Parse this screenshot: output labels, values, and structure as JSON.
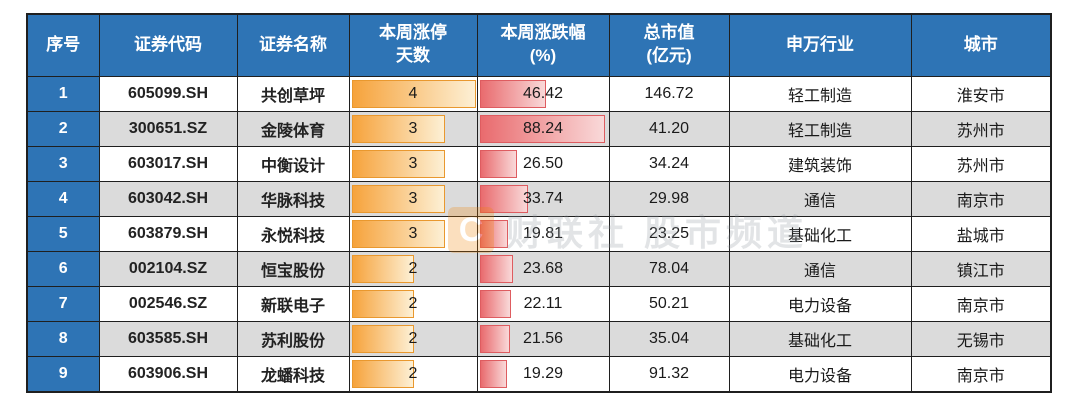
{
  "colors": {
    "header_bg": "#2E74B5",
    "header_text": "#FFFFFF",
    "row_bg": "#FFFFFF",
    "row_alt_bg": "#DBDBDB",
    "grid_border": "#1F1F1F",
    "body_text": "#1A1A1A",
    "days_bar_start": "#F6A33C",
    "days_bar_end": "#FDF0D5",
    "days_bar_border": "#E9982E",
    "change_bar_start": "#E96B6E",
    "change_bar_end": "#F9D9D9",
    "change_bar_border": "#DE5C60",
    "watermark_logo_bg": "#F08300",
    "watermark_text_color": "#8E969E"
  },
  "watermark": {
    "logo": "C",
    "text": "财联社 股市频道"
  },
  "table": {
    "headers": [
      {
        "lines": [
          "序号"
        ]
      },
      {
        "lines": [
          "证券代码"
        ]
      },
      {
        "lines": [
          "证券名称"
        ]
      },
      {
        "lines": [
          "本周涨停",
          "天数"
        ]
      },
      {
        "lines": [
          "本周涨跌幅",
          "(%)"
        ]
      },
      {
        "lines": [
          "总市值",
          "(亿元)"
        ]
      },
      {
        "lines": [
          "申万行业"
        ]
      },
      {
        "lines": [
          "城市"
        ]
      }
    ],
    "days_axis_max": 4,
    "change_axis_max": 88.24,
    "rows": [
      {
        "no": "1",
        "code": "605099.SH",
        "name": "共创草坪",
        "days": 4,
        "change": "46.42",
        "cap": "146.72",
        "industry": "轻工制造",
        "city": "淮安市"
      },
      {
        "no": "2",
        "code": "300651.SZ",
        "name": "金陵体育",
        "days": 3,
        "change": "88.24",
        "cap": "41.20",
        "industry": "轻工制造",
        "city": "苏州市"
      },
      {
        "no": "3",
        "code": "603017.SH",
        "name": "中衡设计",
        "days": 3,
        "change": "26.50",
        "cap": "34.24",
        "industry": "建筑装饰",
        "city": "苏州市"
      },
      {
        "no": "4",
        "code": "603042.SH",
        "name": "华脉科技",
        "days": 3,
        "change": "33.74",
        "cap": "29.98",
        "industry": "通信",
        "city": "南京市"
      },
      {
        "no": "5",
        "code": "603879.SH",
        "name": "永悦科技",
        "days": 3,
        "change": "19.81",
        "cap": "23.25",
        "industry": "基础化工",
        "city": "盐城市"
      },
      {
        "no": "6",
        "code": "002104.SZ",
        "name": "恒宝股份",
        "days": 2,
        "change": "23.68",
        "cap": "78.04",
        "industry": "通信",
        "city": "镇江市"
      },
      {
        "no": "7",
        "code": "002546.SZ",
        "name": "新联电子",
        "days": 2,
        "change": "22.11",
        "cap": "50.21",
        "industry": "电力设备",
        "city": "南京市"
      },
      {
        "no": "8",
        "code": "603585.SH",
        "name": "苏利股份",
        "days": 2,
        "change": "21.56",
        "cap": "35.04",
        "industry": "基础化工",
        "city": "无锡市"
      },
      {
        "no": "9",
        "code": "603906.SH",
        "name": "龙蟠科技",
        "days": 2,
        "change": "19.29",
        "cap": "91.32",
        "industry": "电力设备",
        "city": "南京市"
      }
    ]
  },
  "chart_data": {
    "type": "table",
    "columns": [
      "序号",
      "证券代码",
      "证券名称",
      "本周涨停天数",
      "本周涨跌幅(%)",
      "总市值(亿元)",
      "申万行业",
      "城市"
    ],
    "rows": [
      [
        "1",
        "605099.SH",
        "共创草坪",
        4,
        46.42,
        146.72,
        "轻工制造",
        "淮安市"
      ],
      [
        "2",
        "300651.SZ",
        "金陵体育",
        3,
        88.24,
        41.2,
        "轻工制造",
        "苏州市"
      ],
      [
        "3",
        "603017.SH",
        "中衡设计",
        3,
        26.5,
        34.24,
        "建筑装饰",
        "苏州市"
      ],
      [
        "4",
        "603042.SH",
        "华脉科技",
        3,
        33.74,
        29.98,
        "通信",
        "南京市"
      ],
      [
        "5",
        "603879.SH",
        "永悦科技",
        3,
        19.81,
        23.25,
        "基础化工",
        "盐城市"
      ],
      [
        "6",
        "002104.SZ",
        "恒宝股份",
        2,
        23.68,
        78.04,
        "通信",
        "镇江市"
      ],
      [
        "7",
        "002546.SZ",
        "新联电子",
        2,
        22.11,
        50.21,
        "电力设备",
        "南京市"
      ],
      [
        "8",
        "603585.SH",
        "苏利股份",
        2,
        21.56,
        35.04,
        "基础化工",
        "无锡市"
      ],
      [
        "9",
        "603906.SH",
        "龙蟠科技",
        2,
        19.29,
        91.32,
        "电力设备",
        "南京市"
      ]
    ],
    "data_bars": [
      {
        "column": "本周涨停天数",
        "style": "orange-gradient",
        "scale_min": 0,
        "scale_max": 4
      },
      {
        "column": "本周涨跌幅(%)",
        "style": "red-gradient",
        "scale_min": 0,
        "scale_max": 88.24
      }
    ],
    "legend_position": "none",
    "grid": true
  }
}
